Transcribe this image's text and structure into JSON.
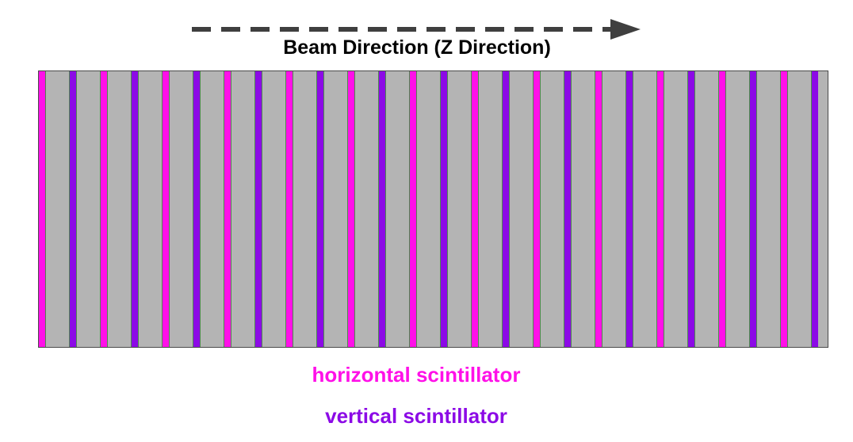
{
  "diagram": {
    "title": "Beam Direction (Z Direction)",
    "arrow": {
      "style": "dashed",
      "color": "#3f3f3f"
    },
    "legend": {
      "horizontal": {
        "label": "horizontal scintillator",
        "color": "#ff10e8"
      },
      "vertical": {
        "label": "vertical scintillator",
        "color": "#8c0ae6"
      }
    },
    "absorber_color": "#b4b4b4",
    "layers": [
      "horizontal",
      "absorber",
      "vertical",
      "absorber",
      "horizontal",
      "absorber",
      "vertical",
      "absorber",
      "horizontal",
      "absorber",
      "vertical",
      "absorber",
      "horizontal",
      "absorber",
      "vertical",
      "absorber",
      "horizontal",
      "absorber",
      "vertical",
      "absorber",
      "horizontal",
      "absorber",
      "vertical",
      "absorber",
      "horizontal",
      "absorber",
      "vertical",
      "absorber",
      "horizontal",
      "absorber",
      "vertical",
      "absorber",
      "horizontal",
      "absorber",
      "vertical",
      "absorber",
      "horizontal",
      "absorber",
      "vertical",
      "absorber",
      "horizontal",
      "absorber",
      "vertical",
      "absorber",
      "horizontal",
      "absorber",
      "vertical",
      "absorber",
      "horizontal",
      "absorber",
      "vertical"
    ]
  }
}
